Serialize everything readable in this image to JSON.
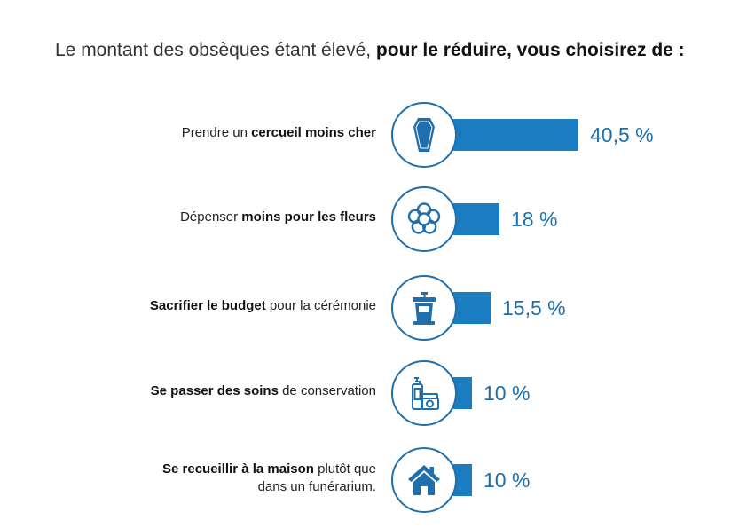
{
  "title": {
    "light": "Le montant des obsèques étant élevé, ",
    "bold": "pour le réduire, vous choisirez de :"
  },
  "colors": {
    "bar": "#1b7dc1",
    "circle": "#1f6fae",
    "value": "#1b6fb0"
  },
  "chart_data": {
    "type": "bar",
    "orientation": "horizontal",
    "title": "Le montant des obsèques étant élevé, pour le réduire, vous choisirez de :",
    "xlim": [
      0,
      40.5
    ],
    "categories": [
      "Prendre un cercueil moins cher",
      "Dépenser moins pour les fleurs",
      "Sacrifier le budget pour la cérémonie",
      "Se passer des soins de conservation",
      "Se recueillir à la maison plutôt que dans un funérarium."
    ],
    "values": [
      40.5,
      18,
      15.5,
      10,
      10
    ],
    "value_labels": [
      "40,5 %",
      "18 %",
      "15,5 %",
      "10 %",
      "10 %"
    ],
    "items": [
      {
        "label_pre": "Prendre un ",
        "label_bold": "cercueil moins cher",
        "label_post": "",
        "label_line2": "",
        "bold_first": false,
        "icon": "coffin-icon",
        "value": 40.5,
        "value_label": "40,5 %"
      },
      {
        "label_pre": "Dépenser ",
        "label_bold": "moins pour les fleurs",
        "label_post": "",
        "label_line2": "",
        "bold_first": false,
        "icon": "flower-icon",
        "value": 18,
        "value_label": "18 %"
      },
      {
        "label_pre": "",
        "label_bold": "Sacrifier le budget",
        "label_post": " pour la cérémonie",
        "label_line2": "",
        "bold_first": true,
        "icon": "lectern-icon",
        "value": 15.5,
        "value_label": "15,5 %"
      },
      {
        "label_pre": "",
        "label_bold": "Se passer des soins",
        "label_post": " de conservation",
        "label_line2": "",
        "bold_first": true,
        "icon": "embalming-products-icon",
        "value": 10,
        "value_label": "10 %"
      },
      {
        "label_pre": "",
        "label_bold": "Se recueillir à la maison",
        "label_post": " plutôt que",
        "label_line2": "dans un funérarium.",
        "bold_first": true,
        "icon": "house-icon",
        "value": 10,
        "value_label": "10 %"
      }
    ]
  }
}
